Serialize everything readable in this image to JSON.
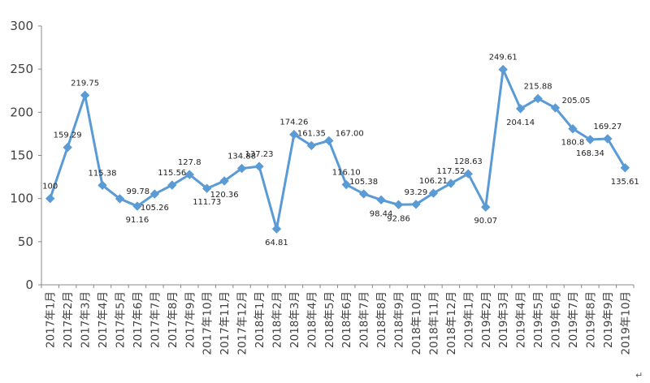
{
  "chart_data": {
    "type": "line",
    "title": "",
    "xlabel": "",
    "ylabel": "",
    "ylim": [
      0,
      300
    ],
    "yticks": [
      0,
      50,
      100,
      150,
      200,
      250,
      300
    ],
    "grid": false,
    "legend": "none",
    "categories": [
      "2017年1月",
      "2017年2月",
      "2017年3月",
      "2017年4月",
      "2017年5月",
      "2017年6月",
      "2017年7月",
      "2017年8月",
      "2017年9月",
      "2017年10月",
      "2017年11月",
      "2017年12月",
      "2018年1月",
      "2018年2月",
      "2018年3月",
      "2018年4月",
      "2018年5月",
      "2018年6月",
      "2018年7月",
      "2018年8月",
      "2018年9月",
      "2018年10月",
      "2018年11月",
      "2018年12月",
      "2019年1月",
      "2019年2月",
      "2019年3月",
      "2019年4月",
      "2019年5月",
      "2019年6月",
      "2019年7月",
      "2019年8月",
      "2019年9月",
      "2019年10月"
    ],
    "series": [
      {
        "values": [
          100,
          159.29,
          219.75,
          115.38,
          99.78,
          91.16,
          105.26,
          115.56,
          127.8,
          111.73,
          120.36,
          134.88,
          137.23,
          64.81,
          174.26,
          161.35,
          167.0,
          116.1,
          105.38,
          98.44,
          92.86,
          93.29,
          106.21,
          117.52,
          128.63,
          90.07,
          249.61,
          204.14,
          215.88,
          205.05,
          180.8,
          168.34,
          169.27,
          135.61
        ],
        "labels": [
          "100",
          "159.29",
          "219.75",
          "115.38",
          "99.78",
          "91.16",
          "105.26",
          "115.56",
          "127.8",
          "111.73",
          "120.36",
          "134.88",
          "137.23",
          "64.81",
          "174.26",
          "161.35",
          "167.00",
          "116.10",
          "105.38",
          "98.44",
          "92.86",
          "93.29",
          "106.21",
          "117.52",
          "128.63",
          "90.07",
          "249.61",
          "204.14",
          "215.88",
          "205.05",
          "180.8",
          "168.34",
          "169.27",
          "135.61"
        ],
        "label_positions": [
          "above",
          "above",
          "above",
          "above",
          "right",
          "below",
          "below",
          "above",
          "above",
          "below",
          "below",
          "above",
          "above",
          "below",
          "above",
          "above",
          "right",
          "above",
          "above",
          "below",
          "below",
          "above",
          "above",
          "above",
          "above",
          "below",
          "above",
          "below",
          "above",
          "right",
          "below",
          "below",
          "above",
          "below"
        ]
      }
    ],
    "colors": {
      "line": "#5B9BD5",
      "marker": "#5B9BD5",
      "axis": "#888888",
      "text": "#404040"
    },
    "marker": "diamond",
    "trailing_mark": "↵"
  }
}
